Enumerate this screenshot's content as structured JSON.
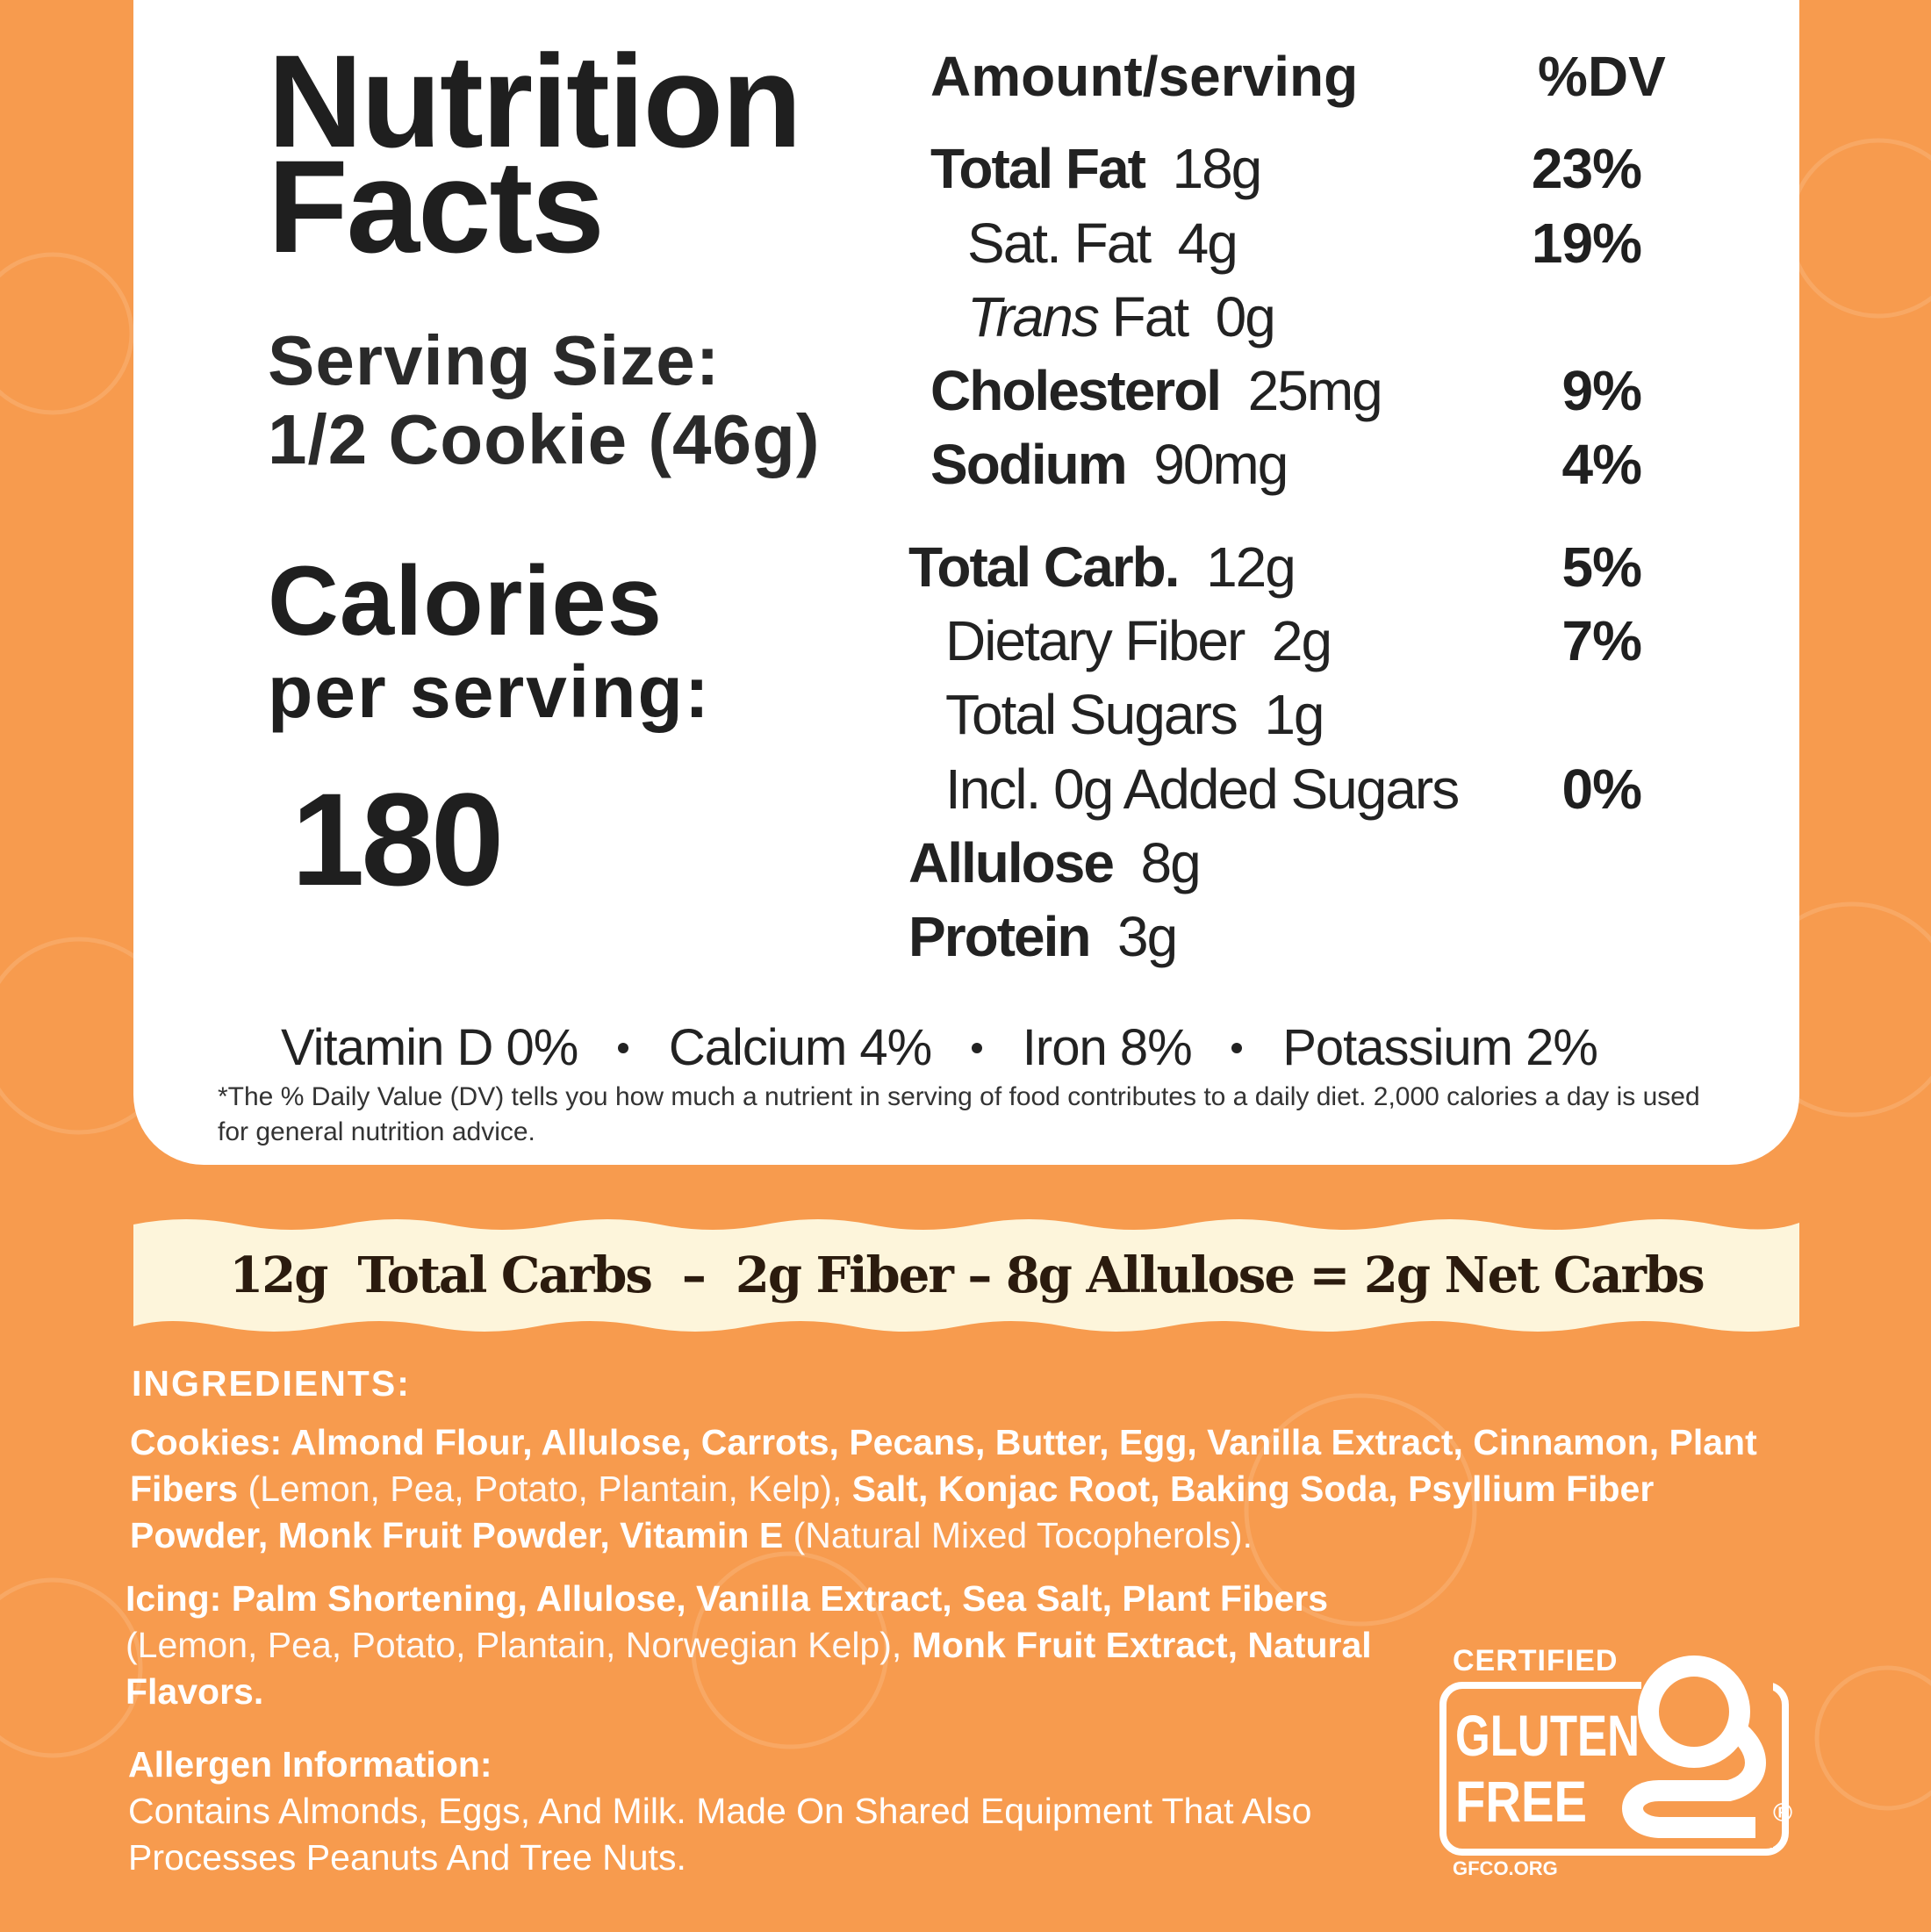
{
  "title": {
    "line1": "Nutrition",
    "line2": "Facts"
  },
  "serving_size": {
    "label": "Serving Size:",
    "value": "1/2 Cookie (46g)"
  },
  "calories": {
    "label": "Calories",
    "sublabel": "per serving:",
    "value": "180"
  },
  "header": {
    "amount": "Amount/serving",
    "dv": "%DV"
  },
  "nutrients": [
    {
      "name": "Total Fat",
      "amount": "18g",
      "dv": "23%"
    },
    {
      "name": "Sat. Fat",
      "amount": "4g",
      "dv": "19%"
    },
    {
      "name_italic": "Trans",
      "name": "Fat",
      "amount": "0g"
    },
    {
      "name": "Cholesterol",
      "amount": "25mg",
      "dv": "9%"
    },
    {
      "name": "Sodium",
      "amount": "90mg",
      "dv": "4%"
    },
    {
      "name": "Total Carb.",
      "amount": "12g",
      "dv": "5%"
    },
    {
      "name": "Dietary Fiber",
      "amount": "2g",
      "dv": "7%"
    },
    {
      "name": "Total Sugars",
      "amount": "1g"
    },
    {
      "name": "Incl. 0g Added Sugars",
      "dv": "0%"
    },
    {
      "name": "Allulose",
      "amount": "8g"
    },
    {
      "name": "Protein",
      "amount": "3g"
    }
  ],
  "vitamins": [
    "Vitamin D 0%",
    "Calcium 4%",
    "Iron 8%",
    "Potassium 2%"
  ],
  "footnote": "*The % Daily Value (DV) tells you how much a nutrient in serving of food contributes to a daily diet. 2,000 calories a day is used for general nutrition advice.",
  "net_carbs": "12g  Total Carbs  –  2g Fiber – 8g Allulose = 2g Net Carbs",
  "ingredients": {
    "heading": "INGREDIENTS:",
    "cookies": [
      "Cookies: Almond Flour, Allulose, Carrots, Pecans, Butter, Egg, Vanilla Extract, Cinnamon, Plant Fibers",
      "(Lemon, Pea, Potato, Plantain, Kelp),",
      "Salt, Konjac Root, Baking Soda, Psyllium Fiber Powder, Monk Fruit Powder, Vitamin E",
      "(Natural Mixed Tocopherols)."
    ],
    "icing": [
      "Icing: Palm Shortening, Allulose, Vanilla Extract, Sea Salt, Plant Fibers",
      "(Lemon, Pea, Potato, Plantain, Norwegian Kelp),",
      "Monk Fruit Extract, Natural Flavors."
    ]
  },
  "allergen": {
    "heading": "Allergen Information:",
    "text": "Contains Almonds, Eggs, And Milk. Made On Shared Equipment That Also Processes Peanuts And Tree Nuts."
  },
  "badge": {
    "top": "CERTIFIED",
    "line1": "GLUTEN",
    "line2": "FREE",
    "site": "GFCO.ORG",
    "mark": "®"
  }
}
